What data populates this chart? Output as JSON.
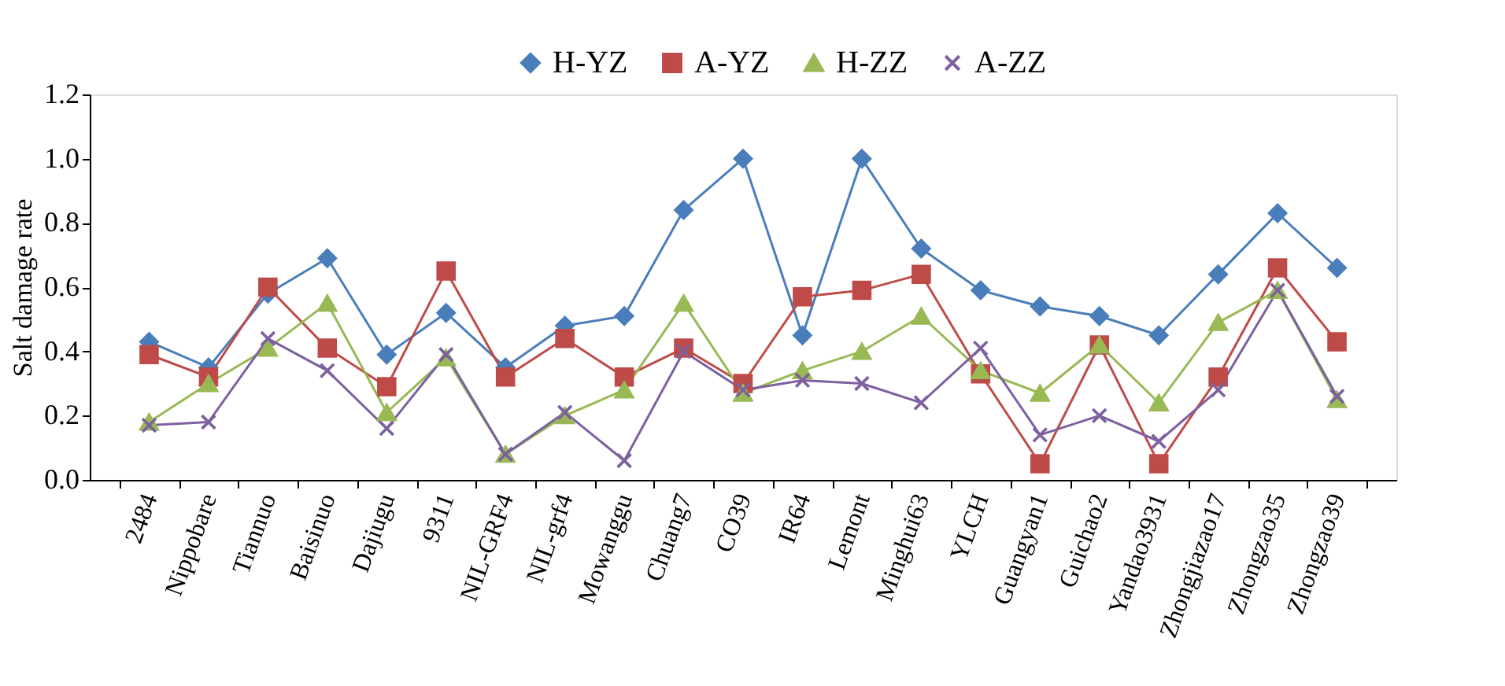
{
  "chart_data": {
    "type": "line",
    "ylabel": "Salt damage rate",
    "categories": [
      "2484",
      "Nippobare",
      "Tiannuo",
      "Baisinuo",
      "Dajiugu",
      "9311",
      "NIL-GRF4",
      "NIL-grf4",
      "Mowanggu",
      "Chuang7",
      "CO39",
      "IR64",
      "Lemont",
      "Minghui63",
      "YLCH",
      "Guangyan1",
      "Guichao2",
      "Yandao3931",
      "Zhongjiazao17",
      "Zhongzao35",
      "Zhongzao39"
    ],
    "series": [
      {
        "name": "H-YZ",
        "color": "#4a7ebb",
        "marker": "diamond",
        "values": [
          0.43,
          0.35,
          0.58,
          0.69,
          0.39,
          0.52,
          0.35,
          0.48,
          0.51,
          0.84,
          1.0,
          0.45,
          1.0,
          0.72,
          0.59,
          0.54,
          0.51,
          0.45,
          0.64,
          0.83,
          0.66
        ]
      },
      {
        "name": "A-YZ",
        "color": "#be4b48",
        "marker": "square",
        "values": [
          0.39,
          0.32,
          0.6,
          0.41,
          0.29,
          0.65,
          0.32,
          0.44,
          0.32,
          0.41,
          0.3,
          0.57,
          0.59,
          0.64,
          0.33,
          0.05,
          0.42,
          0.05,
          0.32,
          0.66,
          0.43
        ]
      },
      {
        "name": "H-ZZ",
        "color": "#98b954",
        "marker": "triangle",
        "values": [
          0.18,
          0.3,
          0.41,
          0.55,
          0.21,
          0.38,
          0.08,
          0.2,
          0.28,
          0.55,
          0.27,
          0.34,
          0.4,
          0.51,
          0.34,
          0.27,
          0.42,
          0.24,
          0.49,
          0.59,
          0.25
        ]
      },
      {
        "name": "A-ZZ",
        "color": "#7d60a0",
        "marker": "cross",
        "values": [
          0.17,
          0.18,
          0.44,
          0.34,
          0.16,
          0.39,
          0.08,
          0.21,
          0.06,
          0.4,
          0.28,
          0.31,
          0.3,
          0.24,
          0.41,
          0.14,
          0.2,
          0.12,
          0.28,
          0.59,
          0.26
        ]
      }
    ],
    "ylim": [
      0,
      1.2
    ],
    "yticks": [
      {
        "value": 0,
        "label": "0.0"
      },
      {
        "value": 0.2,
        "label": "0.2"
      },
      {
        "value": 0.4,
        "label": "0.4"
      },
      {
        "value": 0.6,
        "label": "0.6"
      },
      {
        "value": 0.8,
        "label": "0.8"
      },
      {
        "value": 1.0,
        "label": "1.0"
      },
      {
        "value": 1.2,
        "label": "1.2"
      }
    ],
    "grid": false,
    "legend": "top"
  }
}
